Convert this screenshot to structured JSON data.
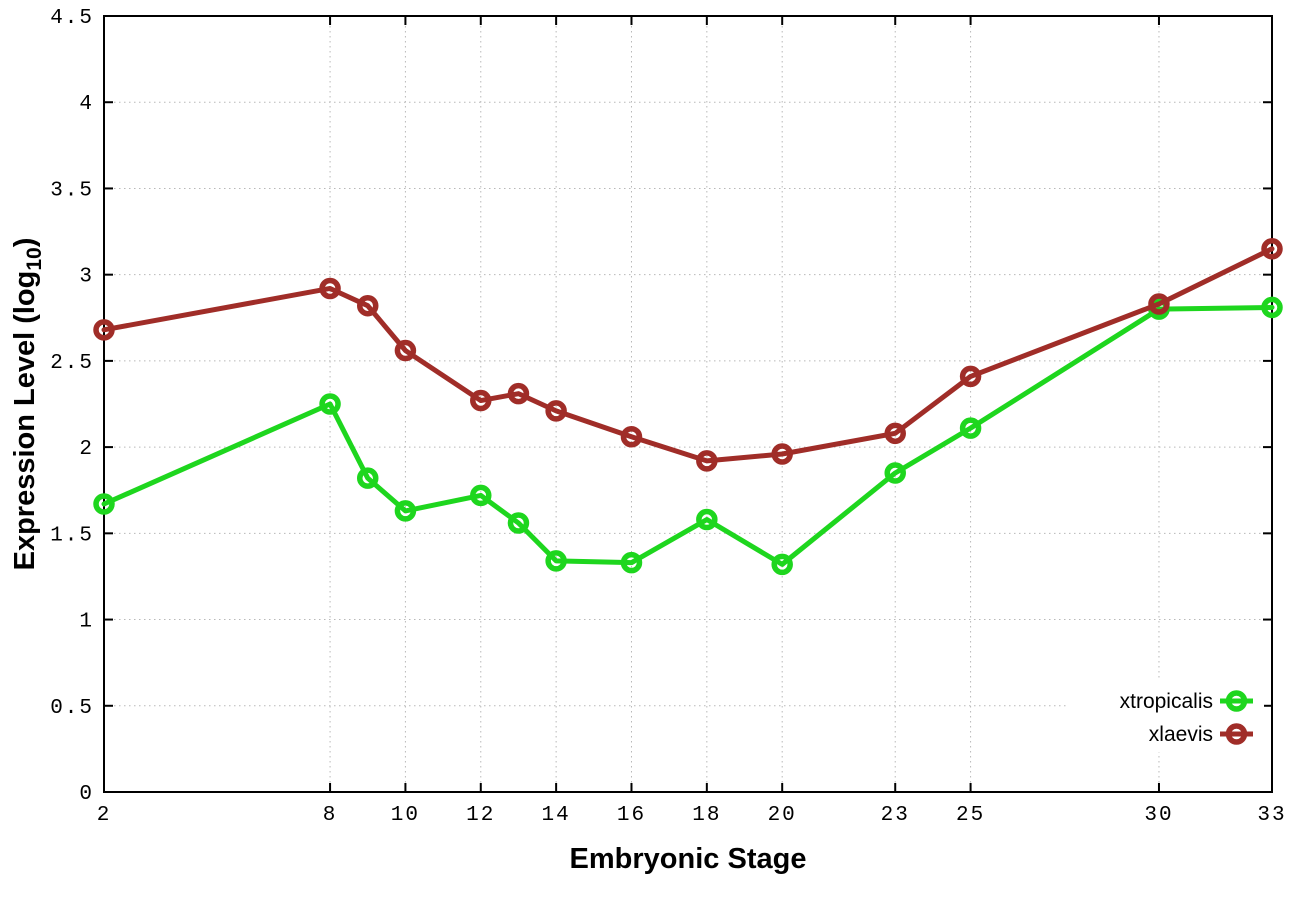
{
  "chart_data": {
    "type": "line",
    "title": "",
    "xlabel": "Embryonic Stage",
    "ylabel": "Expression Level (log10)",
    "ylabel_parts": {
      "main": "Expression Level (log",
      "sub": "10",
      "end": ")"
    },
    "x": [
      2,
      8,
      9,
      10,
      12,
      13,
      14,
      16,
      18,
      20,
      23,
      25,
      30,
      33
    ],
    "xticks": [
      2,
      8,
      10,
      12,
      14,
      16,
      18,
      20,
      23,
      25,
      30,
      33
    ],
    "yticks": [
      0,
      0.5,
      1,
      1.5,
      2,
      2.5,
      3,
      3.5,
      4,
      4.5
    ],
    "xlim": [
      2,
      33
    ],
    "ylim": [
      0,
      4.5
    ],
    "grid": true,
    "marker": "open-circle",
    "legend_position": "bottom-right",
    "series": [
      {
        "name": "xtropicalis",
        "color": "#1ed61e",
        "values": [
          1.67,
          2.25,
          1.82,
          1.63,
          1.72,
          1.56,
          1.34,
          1.33,
          1.58,
          1.32,
          1.85,
          2.11,
          2.8,
          2.81
        ]
      },
      {
        "name": "xlaevis",
        "color": "#a02d28",
        "values": [
          2.68,
          2.92,
          2.82,
          2.56,
          2.27,
          2.31,
          2.21,
          2.06,
          1.92,
          1.96,
          2.08,
          2.41,
          2.83,
          3.15
        ]
      }
    ],
    "style_colors": {
      "border": "#000000",
      "grid": "#b8b8b8",
      "background": "#ffffff"
    }
  }
}
